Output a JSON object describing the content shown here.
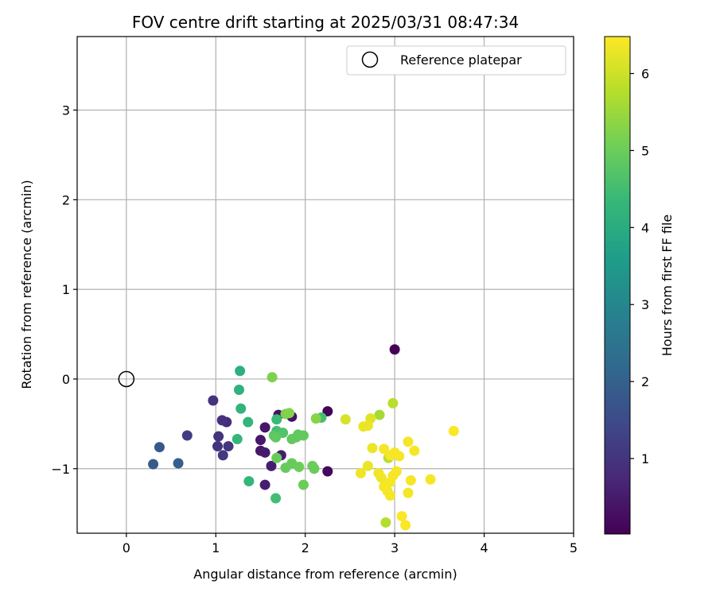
{
  "chart_data": {
    "type": "scatter",
    "title": "FOV centre drift starting at 2025/03/31 08:47:34",
    "xlabel": "Angular distance from reference (arcmin)",
    "ylabel": "Rotation from reference (arcmin)",
    "xlim": [
      -0.55,
      5.0
    ],
    "ylim": [
      -1.72,
      3.82
    ],
    "xticks": [
      0,
      1,
      2,
      3,
      4,
      5
    ],
    "xtick_labels": [
      "0",
      "1",
      "2",
      "3",
      "4",
      "5"
    ],
    "yticks": [
      -1,
      0,
      1,
      2,
      3
    ],
    "ytick_labels": [
      "−1",
      "0",
      "1",
      "2",
      "3"
    ],
    "grid": true,
    "legend": {
      "position": "top-right",
      "entries": [
        "Reference platepar"
      ]
    },
    "reference_point": {
      "x": 0,
      "y": 0,
      "label": "Reference platepar"
    },
    "colorbar": {
      "label": "Hours from first FF file",
      "min": 0.02,
      "max": 6.48,
      "ticks": [
        1,
        2,
        3,
        4,
        5,
        6
      ],
      "tick_labels": [
        "1",
        "2",
        "3",
        "4",
        "5",
        "6"
      ],
      "colormap": "viridis"
    },
    "colors": {
      "viridis": [
        "#440154",
        "#482878",
        "#3e4989",
        "#31688e",
        "#26828e",
        "#1f9e89",
        "#35b779",
        "#6ece58",
        "#b5de2b",
        "#fde725"
      ]
    },
    "points": [
      {
        "x": 3.0,
        "y": 0.33,
        "c": 0.05
      },
      {
        "x": 2.25,
        "y": -0.36,
        "c": 0.1
      },
      {
        "x": 2.25,
        "y": -1.03,
        "c": 0.15
      },
      {
        "x": 1.7,
        "y": -0.4,
        "c": 0.3
      },
      {
        "x": 1.85,
        "y": -0.42,
        "c": 0.35
      },
      {
        "x": 1.55,
        "y": -0.54,
        "c": 0.4
      },
      {
        "x": 1.5,
        "y": -0.68,
        "c": 0.45
      },
      {
        "x": 1.5,
        "y": -0.8,
        "c": 0.45
      },
      {
        "x": 1.55,
        "y": -0.82,
        "c": 0.5
      },
      {
        "x": 1.73,
        "y": -0.85,
        "c": 0.5
      },
      {
        "x": 1.62,
        "y": -0.97,
        "c": 0.55
      },
      {
        "x": 1.55,
        "y": -1.18,
        "c": 0.55
      },
      {
        "x": 1.12,
        "y": -0.48,
        "c": 0.85
      },
      {
        "x": 0.97,
        "y": -0.24,
        "c": 0.95
      },
      {
        "x": 1.07,
        "y": -0.46,
        "c": 0.95
      },
      {
        "x": 1.03,
        "y": -0.64,
        "c": 1.0
      },
      {
        "x": 1.02,
        "y": -0.75,
        "c": 1.0
      },
      {
        "x": 1.14,
        "y": -0.75,
        "c": 1.05
      },
      {
        "x": 1.08,
        "y": -0.85,
        "c": 1.1
      },
      {
        "x": 0.68,
        "y": -0.63,
        "c": 1.2
      },
      {
        "x": 0.37,
        "y": -0.76,
        "c": 1.8
      },
      {
        "x": 0.3,
        "y": -0.95,
        "c": 1.85
      },
      {
        "x": 0.58,
        "y": -0.94,
        "c": 1.95
      },
      {
        "x": 1.27,
        "y": 0.09,
        "c": 4.1
      },
      {
        "x": 1.26,
        "y": -0.12,
        "c": 4.15
      },
      {
        "x": 1.28,
        "y": -0.33,
        "c": 4.2
      },
      {
        "x": 1.36,
        "y": -0.48,
        "c": 4.25
      },
      {
        "x": 1.24,
        "y": -0.67,
        "c": 4.3
      },
      {
        "x": 1.37,
        "y": -1.14,
        "c": 4.3
      },
      {
        "x": 1.68,
        "y": -0.45,
        "c": 4.4
      },
      {
        "x": 1.68,
        "y": -0.58,
        "c": 4.5
      },
      {
        "x": 1.67,
        "y": -1.33,
        "c": 4.5
      },
      {
        "x": 2.18,
        "y": -0.43,
        "c": 4.55
      },
      {
        "x": 1.75,
        "y": -0.6,
        "c": 4.7
      },
      {
        "x": 1.65,
        "y": -0.63,
        "c": 4.8
      },
      {
        "x": 1.67,
        "y": -0.65,
        "c": 4.85
      },
      {
        "x": 1.92,
        "y": -0.62,
        "c": 4.85
      },
      {
        "x": 1.98,
        "y": -0.63,
        "c": 4.9
      },
      {
        "x": 1.9,
        "y": -0.65,
        "c": 4.9
      },
      {
        "x": 1.85,
        "y": -0.67,
        "c": 4.9
      },
      {
        "x": 1.68,
        "y": -0.88,
        "c": 4.95
      },
      {
        "x": 1.85,
        "y": -0.94,
        "c": 4.95
      },
      {
        "x": 1.78,
        "y": -0.99,
        "c": 4.95
      },
      {
        "x": 1.93,
        "y": -0.98,
        "c": 5.0
      },
      {
        "x": 2.08,
        "y": -0.97,
        "c": 5.0
      },
      {
        "x": 2.1,
        "y": -1.0,
        "c": 5.0
      },
      {
        "x": 1.98,
        "y": -1.18,
        "c": 5.0
      },
      {
        "x": 1.63,
        "y": 0.02,
        "c": 5.2
      },
      {
        "x": 1.78,
        "y": -0.39,
        "c": 5.2
      },
      {
        "x": 1.82,
        "y": -0.38,
        "c": 5.25
      },
      {
        "x": 2.12,
        "y": -0.44,
        "c": 5.3
      },
      {
        "x": 2.83,
        "y": -0.4,
        "c": 5.6
      },
      {
        "x": 2.98,
        "y": -0.27,
        "c": 5.8
      },
      {
        "x": 2.9,
        "y": -1.6,
        "c": 5.75
      },
      {
        "x": 2.93,
        "y": -0.88,
        "c": 5.8
      },
      {
        "x": 2.45,
        "y": -0.45,
        "c": 6.1
      },
      {
        "x": 2.73,
        "y": -0.44,
        "c": 6.2
      },
      {
        "x": 2.7,
        "y": -0.52,
        "c": 6.3
      },
      {
        "x": 2.65,
        "y": -0.53,
        "c": 6.3
      },
      {
        "x": 2.75,
        "y": -0.77,
        "c": 6.3
      },
      {
        "x": 2.7,
        "y": -0.97,
        "c": 6.3
      },
      {
        "x": 2.62,
        "y": -1.05,
        "c": 6.35
      },
      {
        "x": 2.82,
        "y": -1.05,
        "c": 6.35
      },
      {
        "x": 2.85,
        "y": -1.1,
        "c": 6.35
      },
      {
        "x": 2.88,
        "y": -0.78,
        "c": 6.4
      },
      {
        "x": 2.95,
        "y": -0.85,
        "c": 6.4
      },
      {
        "x": 3.0,
        "y": -0.82,
        "c": 6.4
      },
      {
        "x": 3.05,
        "y": -0.86,
        "c": 6.4
      },
      {
        "x": 3.15,
        "y": -0.7,
        "c": 6.4
      },
      {
        "x": 3.22,
        "y": -0.8,
        "c": 6.4
      },
      {
        "x": 3.02,
        "y": -1.03,
        "c": 6.4
      },
      {
        "x": 2.98,
        "y": -1.08,
        "c": 6.4
      },
      {
        "x": 2.95,
        "y": -1.15,
        "c": 6.4
      },
      {
        "x": 2.88,
        "y": -1.2,
        "c": 6.4
      },
      {
        "x": 2.92,
        "y": -1.25,
        "c": 6.4
      },
      {
        "x": 2.95,
        "y": -1.3,
        "c": 6.4
      },
      {
        "x": 3.18,
        "y": -1.13,
        "c": 6.4
      },
      {
        "x": 3.15,
        "y": -1.27,
        "c": 6.4
      },
      {
        "x": 3.4,
        "y": -1.12,
        "c": 6.4
      },
      {
        "x": 3.66,
        "y": -0.58,
        "c": 6.45
      },
      {
        "x": 3.08,
        "y": -1.53,
        "c": 6.45
      },
      {
        "x": 3.12,
        "y": -1.63,
        "c": 6.45
      }
    ]
  }
}
